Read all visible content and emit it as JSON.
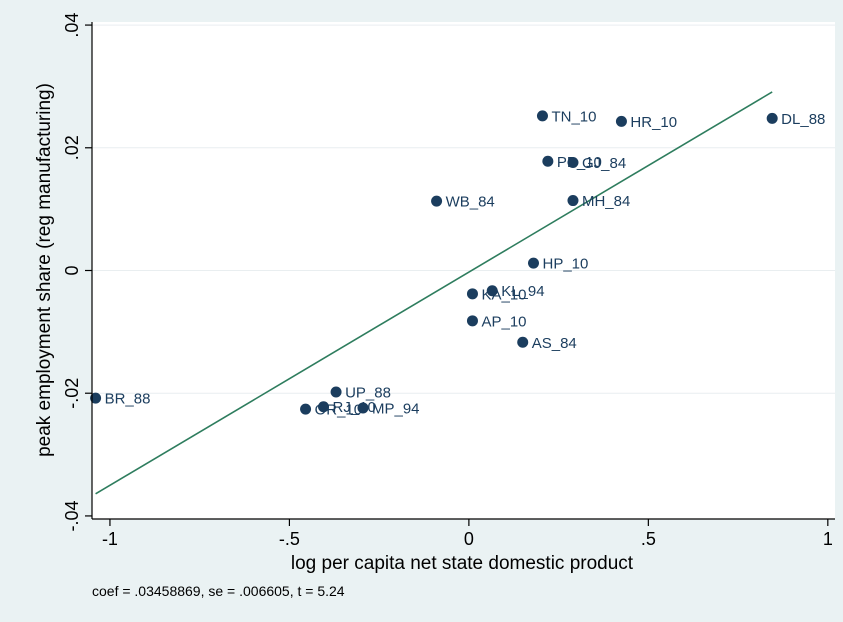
{
  "chart_data": {
    "type": "scatter",
    "xlabel": "log per capita net state domestic product",
    "ylabel": "peak employment share (reg manufacturing)",
    "xlim": [
      -1.05,
      1.02
    ],
    "ylim": [
      -0.0405,
      0.0405
    ],
    "xticks": [
      -1,
      -0.5,
      0,
      0.5,
      1
    ],
    "xtick_labels": [
      "-1",
      "-.5",
      "0",
      ".5",
      "1"
    ],
    "yticks": [
      -0.04,
      -0.02,
      0,
      0.02,
      0.04
    ],
    "ytick_labels": [
      "-.04",
      "-.02",
      "0",
      ".02",
      ".04"
    ],
    "grid": "horizontal",
    "points": [
      {
        "label": "BR_88",
        "x": -1.04,
        "y": -0.0208
      },
      {
        "label": "UP_88",
        "x": -0.37,
        "y": -0.0198
      },
      {
        "label": "RJ_10",
        "x": -0.405,
        "y": -0.0222
      },
      {
        "label": "OR_10",
        "x": -0.455,
        "y": -0.0226
      },
      {
        "label": "MP_94",
        "x": -0.295,
        "y": -0.0224
      },
      {
        "label": "WB_84",
        "x": -0.09,
        "y": 0.0113
      },
      {
        "label": "TN_10",
        "x": 0.205,
        "y": 0.0252
      },
      {
        "label": "HR_10",
        "x": 0.425,
        "y": 0.0243
      },
      {
        "label": "DL_88",
        "x": 0.845,
        "y": 0.0248
      },
      {
        "label": "PB_10",
        "x": 0.22,
        "y": 0.0178
      },
      {
        "label": "GJ_84",
        "x": 0.29,
        "y": 0.0176
      },
      {
        "label": "MH_84",
        "x": 0.29,
        "y": 0.0114
      },
      {
        "label": "HP_10",
        "x": 0.18,
        "y": 0.0012
      },
      {
        "label": "KL_94",
        "x": 0.065,
        "y": -0.0033
      },
      {
        "label": "KA_10",
        "x": 0.01,
        "y": -0.0038
      },
      {
        "label": "AP_10",
        "x": 0.01,
        "y": -0.0082
      },
      {
        "label": "AS_84",
        "x": 0.15,
        "y": -0.0117
      }
    ],
    "fit_line": {
      "x": [
        -1.04,
        0.845
      ],
      "y": [
        -0.0364,
        0.0291
      ]
    },
    "note": "coef = .03458869, se = .006605, t = 5.24",
    "colors": {
      "marker": "#1b3d5e",
      "fit": "#2e7d5e",
      "background": "#eaf2f3",
      "plot_bg": "#ffffff",
      "grid": "#e9eef0"
    }
  }
}
